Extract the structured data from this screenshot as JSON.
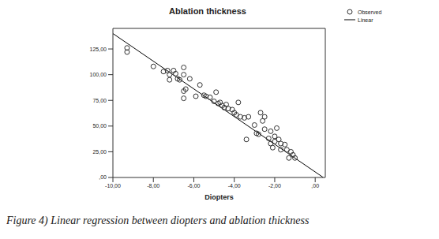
{
  "chart_data": {
    "type": "scatter",
    "title": "Ablation thickness",
    "x_label": "Diopters",
    "caption": "Figure 4) Linear regression between diopters and ablation thickness",
    "legend": "right",
    "grid": false,
    "xlim": [
      -10,
      0.5
    ],
    "ylim": [
      0,
      145
    ],
    "xticks": [
      {
        "value": -10,
        "label": "-10,00"
      },
      {
        "value": -8,
        "label": "-8,00"
      },
      {
        "value": -6,
        "label": "-6,00"
      },
      {
        "value": -4,
        "label": "-4,00"
      },
      {
        "value": -2,
        "label": "-2,00"
      },
      {
        "value": 0,
        "label": ",00"
      }
    ],
    "yticks": [
      {
        "value": 0,
        "label": ",00"
      },
      {
        "value": 25,
        "label": "25,00"
      },
      {
        "value": 50,
        "label": "50,00"
      },
      {
        "value": 75,
        "label": "75,00"
      },
      {
        "value": 100,
        "label": "100,00"
      },
      {
        "value": 125,
        "label": "125,00"
      }
    ],
    "series": [
      {
        "name": "Observed",
        "type": "scatter",
        "marker": "circle",
        "color": "#333333",
        "x": [
          -9.3,
          -9.3,
          -8.0,
          -7.5,
          -7.3,
          -7.2,
          -7.2,
          -7.0,
          -6.9,
          -6.8,
          -6.7,
          -6.5,
          -6.5,
          -6.4,
          -6.5,
          -6.5,
          -6.2,
          -5.9,
          -5.7,
          -5.5,
          -5.4,
          -5.2,
          -5.0,
          -4.9,
          -4.8,
          -4.7,
          -4.6,
          -4.5,
          -4.4,
          -4.3,
          -4.1,
          -4.0,
          -3.9,
          -3.8,
          -3.7,
          -3.5,
          -3.4,
          -3.3,
          -3.0,
          -2.9,
          -2.8,
          -2.7,
          -2.6,
          -2.5,
          -2.5,
          -2.3,
          -2.2,
          -2.2,
          -2.1,
          -2.0,
          -2.0,
          -1.9,
          -1.8,
          -1.7,
          -1.7,
          -1.5,
          -1.4,
          -1.3,
          -1.2,
          -1.1,
          -1.0
        ],
        "values": [
          126,
          122,
          108,
          103,
          104,
          100,
          95,
          104,
          101,
          96,
          95,
          107,
          100,
          86,
          84,
          77,
          96,
          79,
          90,
          80,
          79,
          78,
          74,
          83,
          72,
          73,
          70,
          68,
          71,
          67,
          66,
          63,
          61,
          73,
          59,
          58,
          37,
          59,
          51,
          43,
          42,
          63,
          55,
          59,
          47,
          38,
          45,
          33,
          29,
          40,
          35,
          48,
          37,
          33,
          27,
          32,
          27,
          19,
          25,
          22,
          19
        ]
      },
      {
        "name": "Linear",
        "type": "line",
        "line_style": "solid",
        "color": "#000000",
        "x": [
          -10,
          0.4
        ],
        "values": [
          140,
          0
        ]
      }
    ]
  }
}
